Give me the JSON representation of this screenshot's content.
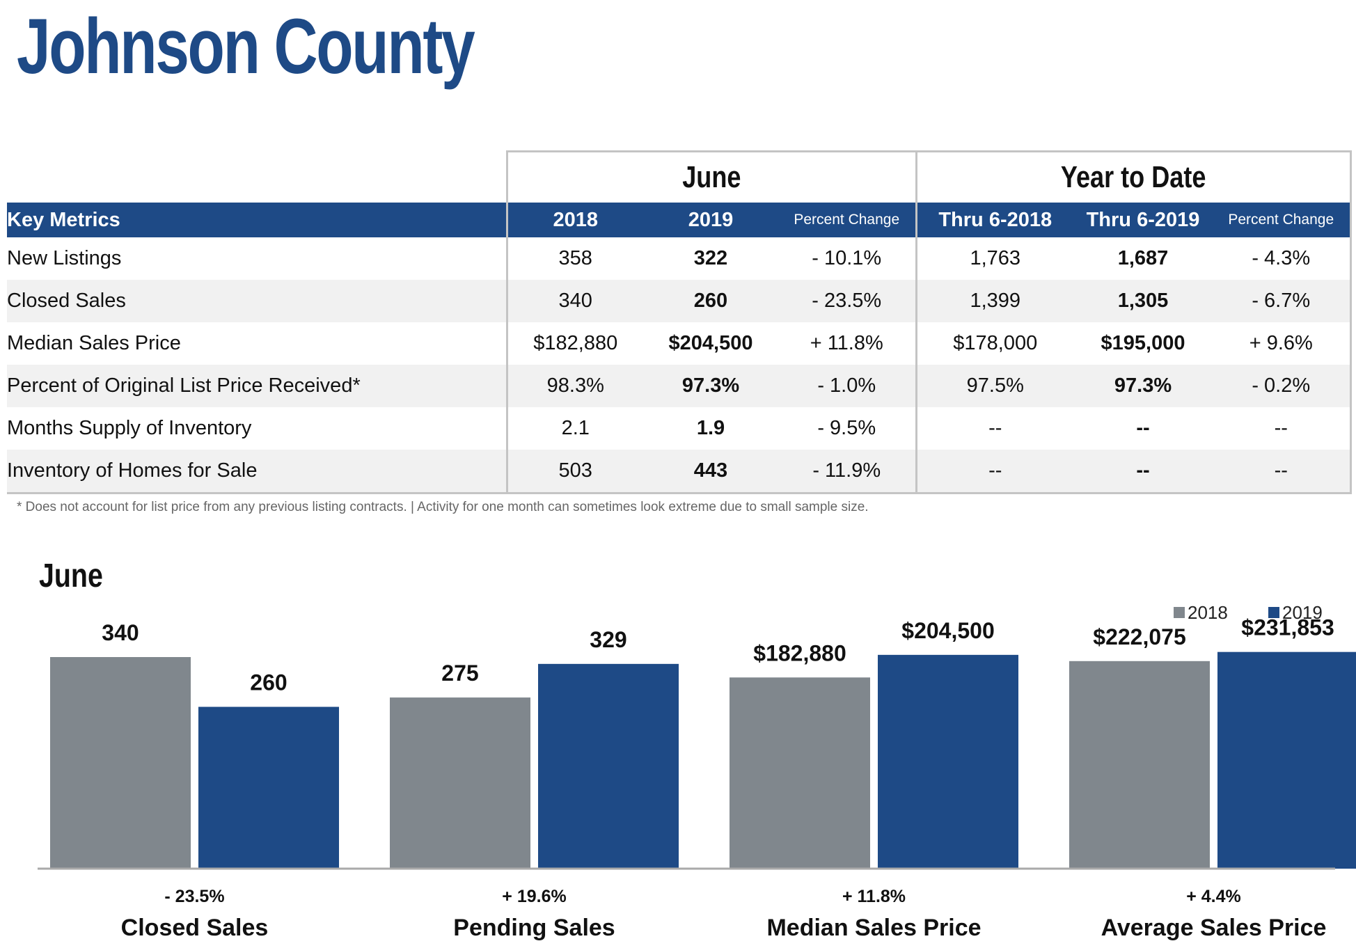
{
  "title": "Johnson County",
  "table": {
    "groups": {
      "june": "June",
      "ytd": "Year to Date"
    },
    "headers": {
      "key_metrics": "Key Metrics",
      "y2018": "2018",
      "y2019": "2019",
      "pct_change": "Percent Change",
      "thru2018": "Thru 6-2018",
      "thru2019": "Thru 6-2019",
      "pct_change_ytd": "Percent Change"
    },
    "rows": [
      {
        "label": "New Listings",
        "v2018": "358",
        "v2019": "322",
        "pct": "- 10.1%",
        "ytd2018": "1,763",
        "ytd2019": "1,687",
        "ytd_pct": "- 4.3%"
      },
      {
        "label": "Closed Sales",
        "v2018": "340",
        "v2019": "260",
        "pct": "- 23.5%",
        "ytd2018": "1,399",
        "ytd2019": "1,305",
        "ytd_pct": "- 6.7%"
      },
      {
        "label": "Median Sales Price",
        "v2018": "$182,880",
        "v2019": "$204,500",
        "pct": "+ 11.8%",
        "ytd2018": "$178,000",
        "ytd2019": "$195,000",
        "ytd_pct": "+ 9.6%"
      },
      {
        "label": "Percent of Original List Price Received*",
        "v2018": "98.3%",
        "v2019": "97.3%",
        "pct": "- 1.0%",
        "ytd2018": "97.5%",
        "ytd2019": "97.3%",
        "ytd_pct": "- 0.2%"
      },
      {
        "label": "Months Supply of Inventory",
        "v2018": "2.1",
        "v2019": "1.9",
        "pct": "- 9.5%",
        "ytd2018": "--",
        "ytd2019": "--",
        "ytd_pct": "--"
      },
      {
        "label": "Inventory of Homes for Sale",
        "v2018": "503",
        "v2019": "443",
        "pct": "- 11.9%",
        "ytd2018": "--",
        "ytd2019": "--",
        "ytd_pct": "--"
      }
    ]
  },
  "footnote": "* Does not account for list price from any previous listing contracts.  |  Activity for one month can sometimes look extreme due to small sample size.",
  "chart_data": {
    "type": "bar",
    "title": "June",
    "legend_position": "top-right",
    "grid": false,
    "series_colors": {
      "2018": "#80878d",
      "2019": "#1e4a86"
    },
    "series": [
      {
        "name": "2018",
        "values": [
          340,
          275,
          182880,
          222075
        ],
        "labels": [
          "340",
          "275",
          "$182,880",
          "$222,075"
        ]
      },
      {
        "name": "2019",
        "values": [
          260,
          329,
          204500,
          231853
        ],
        "labels": [
          "260",
          "329",
          "$204,500",
          "$231,853"
        ]
      }
    ],
    "groups": [
      {
        "category": "Closed Sales",
        "change": "- 23.5%",
        "ylim": [
          0,
          425
        ]
      },
      {
        "category": "Pending Sales",
        "change": "+ 19.6%",
        "ylim": [
          0,
          425
        ]
      },
      {
        "category": "Median Sales Price",
        "change": "+ 11.8%",
        "ylim": [
          0,
          253000
        ]
      },
      {
        "category": "Average Sales Price",
        "change": "+ 4.4%",
        "ylim": [
          0,
          283000
        ]
      }
    ]
  }
}
